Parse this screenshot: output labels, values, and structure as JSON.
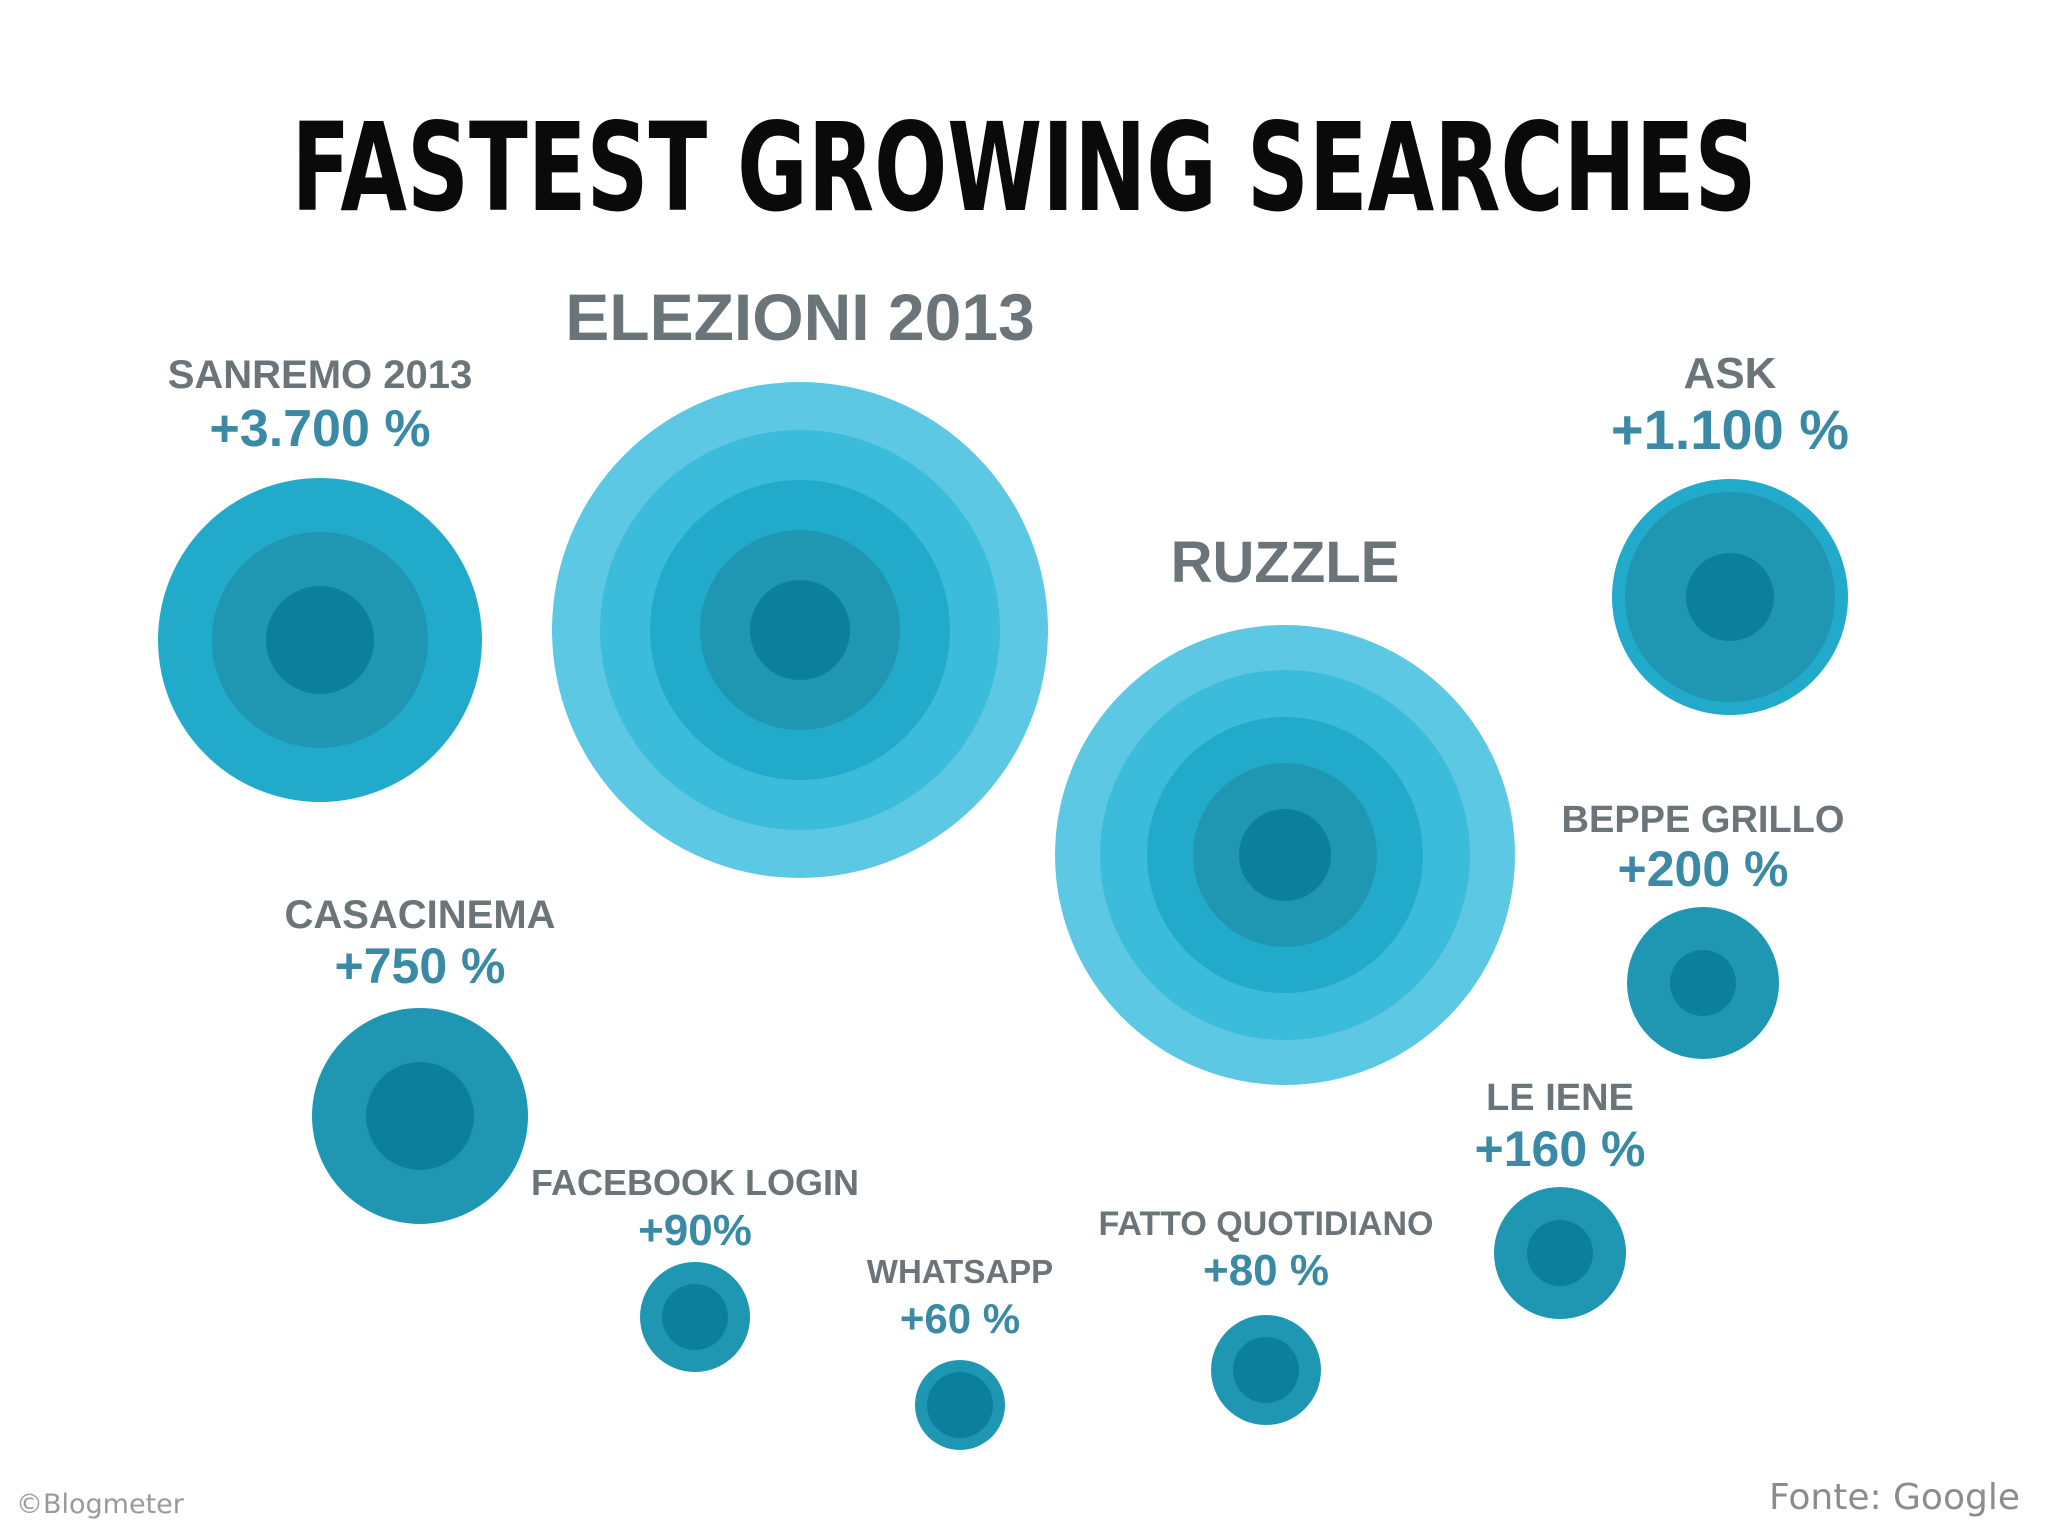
{
  "title": "FASTEST GROWING SEARCHES",
  "credit": "©Blogmeter",
  "source": "Fonte: Google",
  "colors": {
    "ring_palette": [
      "#5cc8e4",
      "#3cbcdb",
      "#22aacb",
      "#1f97b3",
      "#0c7f9c"
    ],
    "label_name": "#6b7478",
    "label_value": "#3a8aa6",
    "title": "#0a0a0a"
  },
  "chart_data": {
    "type": "bubble",
    "series": [
      {
        "label": "SANREMO 2013",
        "value_label": "+3.700 %",
        "value": 3700
      },
      {
        "label": "ELEZIONI 2013",
        "value_label": "",
        "value": null
      },
      {
        "label": "RUZZLE",
        "value_label": "",
        "value": null
      },
      {
        "label": "ASK",
        "value_label": "+1.100 %",
        "value": 1100
      },
      {
        "label": "BEPPE GRILLO",
        "value_label": "+200 %",
        "value": 200
      },
      {
        "label": "CASACINEMA",
        "value_label": "+750 %",
        "value": 750
      },
      {
        "label": "LE IENE",
        "value_label": "+160 %",
        "value": 160
      },
      {
        "label": "FACEBOOK LOGIN",
        "value_label": "+90%",
        "value": 90
      },
      {
        "label": "FATTO QUOTIDIANO",
        "value_label": "+80 %",
        "value": 80
      },
      {
        "label": "WHATSAPP",
        "value_label": "+60 %",
        "value": 60
      }
    ]
  }
}
